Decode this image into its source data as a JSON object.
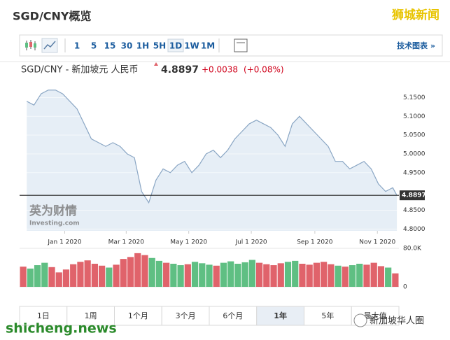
{
  "header": {
    "title": "SGD/CNY概览",
    "watermark": "狮城新闻"
  },
  "toolbar": {
    "intervals": [
      "1",
      "5",
      "15",
      "30",
      "1H",
      "5H",
      "1D",
      "1W",
      "1M"
    ],
    "selected": 6,
    "link": "技术图表 »"
  },
  "quote": {
    "pair": "SGD/CNY - 新加坡元 人民币",
    "change": "+0.0038",
    "change_pct": "(+0.08%)"
  },
  "chart_data": [
    {
      "type": "line",
      "color": "#8aa6c4",
      "fill": "#e6eef6",
      "x": [
        "2019-11-25",
        "2019-12-02",
        "2019-12-09",
        "2019-12-16",
        "2019-12-23",
        "2019-12-30",
        "2020-01-06",
        "2020-01-13",
        "2020-01-20",
        "2020-01-27",
        "2020-02-03",
        "2020-02-10",
        "2020-02-17",
        "2020-02-24",
        "2020-03-02",
        "2020-03-09",
        "2020-03-16",
        "2020-03-23",
        "2020-03-30",
        "2020-04-06",
        "2020-04-13",
        "2020-04-20",
        "2020-04-27",
        "2020-05-04",
        "2020-05-11",
        "2020-05-18",
        "2020-05-25",
        "2020-06-01",
        "2020-06-08",
        "2020-06-15",
        "2020-06-22",
        "2020-06-29",
        "2020-07-06",
        "2020-07-13",
        "2020-07-20",
        "2020-07-27",
        "2020-08-03",
        "2020-08-10",
        "2020-08-17",
        "2020-08-24",
        "2020-08-31",
        "2020-09-07",
        "2020-09-14",
        "2020-09-21",
        "2020-09-28",
        "2020-10-05",
        "2020-10-12",
        "2020-10-19",
        "2020-10-26",
        "2020-11-02",
        "2020-11-09",
        "2020-11-16",
        "2020-11-20"
      ],
      "values": [
        5.14,
        5.13,
        5.16,
        5.17,
        5.17,
        5.16,
        5.14,
        5.12,
        5.08,
        5.04,
        5.03,
        5.02,
        5.03,
        5.02,
        5.0,
        4.99,
        4.9,
        4.87,
        4.93,
        4.96,
        4.95,
        4.97,
        4.98,
        4.95,
        4.97,
        5.0,
        5.01,
        4.99,
        5.01,
        5.04,
        5.06,
        5.08,
        5.09,
        5.08,
        5.07,
        5.05,
        5.02,
        5.08,
        5.1,
        5.08,
        5.06,
        5.04,
        5.02,
        4.98,
        4.98,
        4.96,
        4.97,
        4.98,
        4.96,
        4.92,
        4.9,
        4.91,
        4.8897
      ],
      "current_price": 4.8897,
      "xlim": [
        "2019-11-18",
        "2020-11-22"
      ],
      "xticks": [
        {
          "value": "2020-01-01",
          "label": "Jan 1 2020"
        },
        {
          "value": "2020-03-01",
          "label": "Mar 1 2020"
        },
        {
          "value": "2020-05-01",
          "label": "May 1 2020"
        },
        {
          "value": "2020-07-01",
          "label": "Jul 1 2020"
        },
        {
          "value": "2020-09-01",
          "label": "Sep 1 2020"
        },
        {
          "value": "2020-11-01",
          "label": "Nov 1 2020"
        }
      ],
      "ylim": [
        4.795,
        5.19
      ],
      "yticks": [
        {
          "value": 4.8,
          "label": "4.8000"
        },
        {
          "value": 4.85,
          "label": "4.8500"
        },
        {
          "value": 4.95,
          "label": "4.9500"
        },
        {
          "value": 5.0,
          "label": "5.0000"
        },
        {
          "value": 5.05,
          "label": "5.0500"
        },
        {
          "value": 5.1,
          "label": "5.1000"
        },
        {
          "value": 5.15,
          "label": "5.1500"
        }
      ],
      "grid": true
    },
    {
      "type": "bar",
      "values": [
        42000,
        38000,
        45000,
        50000,
        41000,
        30000,
        36000,
        47000,
        52000,
        55000,
        48000,
        44000,
        40000,
        46000,
        58000,
        62000,
        70000,
        66000,
        60000,
        54000,
        50000,
        48000,
        45000,
        47000,
        52000,
        49000,
        46000,
        44000,
        50000,
        53000,
        48000,
        51000,
        56000,
        50000,
        47000,
        45000,
        49000,
        52000,
        54000,
        48000,
        46000,
        50000,
        52000,
        47000,
        44000,
        42000,
        45000,
        48000,
        46000,
        50000,
        43000,
        40000,
        28000
      ],
      "colors": [
        "#e0636b",
        "#5fbf83",
        "#5fbf83",
        "#5fbf83",
        "#e0636b",
        "#e0636b",
        "#e0636b",
        "#e0636b",
        "#e0636b",
        "#e0636b",
        "#e0636b",
        "#e0636b",
        "#5fbf83",
        "#e0636b",
        "#e0636b",
        "#e0636b",
        "#e0636b",
        "#e0636b",
        "#5fbf83",
        "#5fbf83",
        "#e0636b",
        "#5fbf83",
        "#5fbf83",
        "#e0636b",
        "#5fbf83",
        "#5fbf83",
        "#5fbf83",
        "#e0636b",
        "#5fbf83",
        "#5fbf83",
        "#5fbf83",
        "#5fbf83",
        "#5fbf83",
        "#e0636b",
        "#e0636b",
        "#e0636b",
        "#e0636b",
        "#5fbf83",
        "#5fbf83",
        "#e0636b",
        "#e0636b",
        "#e0636b",
        "#e0636b",
        "#e0636b",
        "#5fbf83",
        "#e0636b",
        "#5fbf83",
        "#5fbf83",
        "#e0636b",
        "#e0636b",
        "#e0636b",
        "#5fbf83",
        "#e0636b"
      ],
      "ylim": [
        0,
        80000
      ],
      "yticks": [
        {
          "value": 80000,
          "label": "80.0K"
        },
        0
      ]
    }
  ],
  "ranges": {
    "labels": [
      "1日",
      "1周",
      "1个月",
      "3个月",
      "6个月",
      "1年",
      "5年",
      "最大值"
    ],
    "selected": 5
  },
  "footer": {
    "site": "shicheng.news",
    "account": "新加坡华人圈"
  }
}
